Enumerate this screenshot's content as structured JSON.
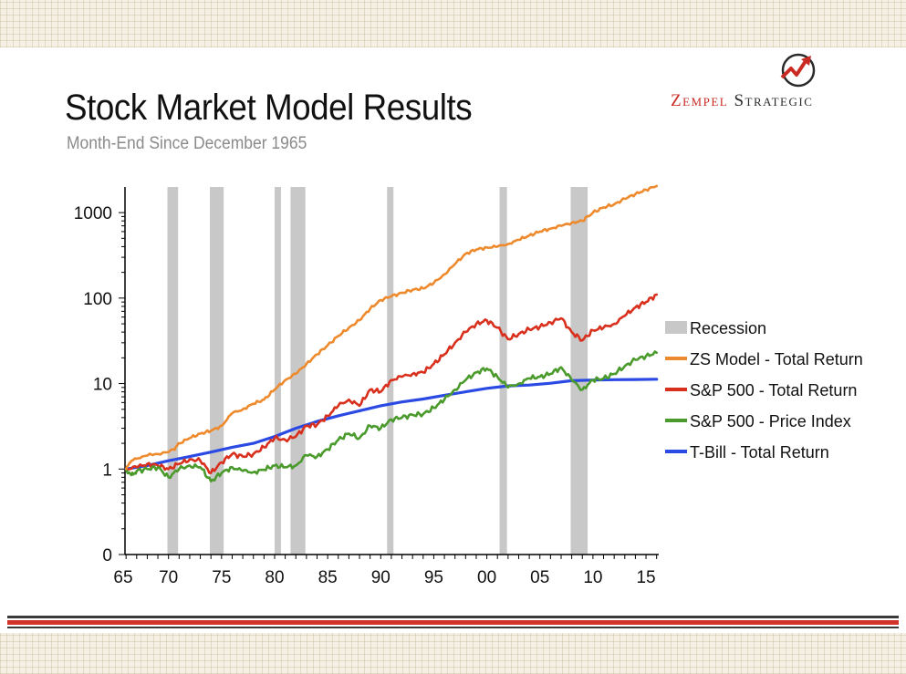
{
  "header": {
    "title": "Stock Market Model Results",
    "subtitle": "Month-End Since December 1965"
  },
  "brand": {
    "name_part1": "Zempel",
    "name_part2": "Strategic",
    "logo_icon": "zigzag-arrow-circle-icon",
    "colors": {
      "red": "#c92a22",
      "dark": "#2a2a2a"
    }
  },
  "chart_data": {
    "type": "line",
    "title": "Stock Market Model Results",
    "subtitle": "Month-End Since December 1965",
    "xlabel": "",
    "ylabel": "",
    "y_scale": "log",
    "xlim": [
      1965.9,
      2016.2
    ],
    "y_ticks": [
      {
        "value": 1000,
        "label": "1000"
      },
      {
        "value": 100,
        "label": "100"
      },
      {
        "value": 10,
        "label": "10"
      },
      {
        "value": 1,
        "label": "1"
      },
      {
        "value": 0.1,
        "label": "0"
      }
    ],
    "x_ticks": [
      {
        "value": 1965,
        "label": "65"
      },
      {
        "value": 1970,
        "label": "70"
      },
      {
        "value": 1975,
        "label": "75"
      },
      {
        "value": 1980,
        "label": "80"
      },
      {
        "value": 1985,
        "label": "85"
      },
      {
        "value": 1990,
        "label": "90"
      },
      {
        "value": 1995,
        "label": "95"
      },
      {
        "value": 2000,
        "label": "00"
      },
      {
        "value": 2005,
        "label": "05"
      },
      {
        "value": 2010,
        "label": "10"
      },
      {
        "value": 2015,
        "label": "15"
      }
    ],
    "recessions": [
      [
        1969.9,
        1970.9
      ],
      [
        1973.9,
        1975.2
      ],
      [
        1980.0,
        1980.6
      ],
      [
        1981.5,
        1982.9
      ],
      [
        1990.6,
        1991.2
      ],
      [
        2001.2,
        2001.9
      ],
      [
        2007.9,
        2009.5
      ]
    ],
    "legend": {
      "position": "right",
      "recession_label": "Recession",
      "recession_color": "#c8c8c8"
    },
    "series": [
      {
        "name": "ZS Model - Total Return",
        "color": "#ee8a2e",
        "points": [
          [
            1966,
            1
          ],
          [
            1966.5,
            1.25
          ],
          [
            1967.5,
            1.4
          ],
          [
            1969,
            1.5
          ],
          [
            1970.5,
            1.7
          ],
          [
            1971,
            2.0
          ],
          [
            1972,
            2.3
          ],
          [
            1973,
            2.6
          ],
          [
            1974,
            2.8
          ],
          [
            1975,
            3.2
          ],
          [
            1976,
            4.5
          ],
          [
            1977,
            5.0
          ],
          [
            1978,
            5.8
          ],
          [
            1979,
            6.5
          ],
          [
            1980,
            8.5
          ],
          [
            1981,
            11
          ],
          [
            1982,
            13
          ],
          [
            1983,
            17
          ],
          [
            1984,
            22
          ],
          [
            1985,
            28
          ],
          [
            1986,
            36
          ],
          [
            1987,
            45
          ],
          [
            1988,
            55
          ],
          [
            1989,
            75
          ],
          [
            1990,
            95
          ],
          [
            1991,
            105
          ],
          [
            1992,
            115
          ],
          [
            1993,
            125
          ],
          [
            1994,
            130
          ],
          [
            1995,
            150
          ],
          [
            1996,
            190
          ],
          [
            1997,
            250
          ],
          [
            1998,
            330
          ],
          [
            1999,
            370
          ],
          [
            2000,
            390
          ],
          [
            2001,
            400
          ],
          [
            2002,
            430
          ],
          [
            2003,
            480
          ],
          [
            2004,
            540
          ],
          [
            2005,
            600
          ],
          [
            2006,
            650
          ],
          [
            2007,
            700
          ],
          [
            2008,
            760
          ],
          [
            2009,
            800
          ],
          [
            2010,
            1000
          ],
          [
            2011,
            1150
          ],
          [
            2012,
            1250
          ],
          [
            2013,
            1450
          ],
          [
            2014,
            1650
          ],
          [
            2015,
            1850
          ],
          [
            2016,
            2050
          ]
        ]
      },
      {
        "name": "S&P 500 - Total Return",
        "color": "#d9301e",
        "points": [
          [
            1966,
            1
          ],
          [
            1967,
            1.05
          ],
          [
            1968,
            1.15
          ],
          [
            1969,
            1.1
          ],
          [
            1970,
            1.0
          ],
          [
            1971,
            1.15
          ],
          [
            1972,
            1.3
          ],
          [
            1973,
            1.25
          ],
          [
            1974,
            0.9
          ],
          [
            1975,
            1.2
          ],
          [
            1976,
            1.5
          ],
          [
            1977,
            1.4
          ],
          [
            1978,
            1.5
          ],
          [
            1979,
            1.8
          ],
          [
            1980,
            2.3
          ],
          [
            1981,
            2.2
          ],
          [
            1982,
            2.4
          ],
          [
            1983,
            3.2
          ],
          [
            1984,
            3.3
          ],
          [
            1985,
            4.2
          ],
          [
            1986,
            5.5
          ],
          [
            1987,
            6.5
          ],
          [
            1988,
            5.5
          ],
          [
            1989,
            8.5
          ],
          [
            1990,
            8.0
          ],
          [
            1991,
            11
          ],
          [
            1992,
            12
          ],
          [
            1993,
            13
          ],
          [
            1994,
            13.5
          ],
          [
            1995,
            17
          ],
          [
            1996,
            22
          ],
          [
            1997,
            30
          ],
          [
            1998,
            40
          ],
          [
            1999,
            50
          ],
          [
            2000,
            55
          ],
          [
            2001,
            45
          ],
          [
            2002,
            33
          ],
          [
            2003,
            38
          ],
          [
            2004,
            43
          ],
          [
            2005,
            46
          ],
          [
            2006,
            52
          ],
          [
            2007,
            58
          ],
          [
            2008,
            40
          ],
          [
            2009,
            32
          ],
          [
            2010,
            42
          ],
          [
            2011,
            45
          ],
          [
            2012,
            50
          ],
          [
            2013,
            62
          ],
          [
            2014,
            78
          ],
          [
            2015,
            90
          ],
          [
            2016,
            110
          ]
        ]
      },
      {
        "name": "S&P 500 - Price Index",
        "color": "#4a9a2c",
        "points": [
          [
            1966,
            1
          ],
          [
            1966.5,
            0.85
          ],
          [
            1967,
            0.95
          ],
          [
            1968,
            1.0
          ],
          [
            1969,
            1.05
          ],
          [
            1970,
            0.8
          ],
          [
            1971,
            1.0
          ],
          [
            1972,
            1.1
          ],
          [
            1973,
            1.05
          ],
          [
            1974,
            0.72
          ],
          [
            1975,
            0.9
          ],
          [
            1976,
            1.05
          ],
          [
            1977,
            0.95
          ],
          [
            1978,
            0.92
          ],
          [
            1979,
            0.98
          ],
          [
            1980,
            1.1
          ],
          [
            1981,
            1.05
          ],
          [
            1982,
            1.1
          ],
          [
            1983,
            1.45
          ],
          [
            1984,
            1.4
          ],
          [
            1985,
            1.7
          ],
          [
            1986,
            2.2
          ],
          [
            1987,
            2.6
          ],
          [
            1988,
            2.3
          ],
          [
            1989,
            3.2
          ],
          [
            1990,
            3.0
          ],
          [
            1991,
            3.8
          ],
          [
            1992,
            4.0
          ],
          [
            1993,
            4.3
          ],
          [
            1994,
            4.4
          ],
          [
            1995,
            5.2
          ],
          [
            1996,
            6.5
          ],
          [
            1997,
            8.5
          ],
          [
            1998,
            11
          ],
          [
            1999,
            13.5
          ],
          [
            2000,
            15
          ],
          [
            2001,
            12
          ],
          [
            2002,
            9
          ],
          [
            2003,
            10
          ],
          [
            2004,
            11.5
          ],
          [
            2005,
            12
          ],
          [
            2006,
            13
          ],
          [
            2007,
            15.5
          ],
          [
            2008,
            11
          ],
          [
            2009,
            8.5
          ],
          [
            2010,
            11
          ],
          [
            2011,
            11.5
          ],
          [
            2012,
            13
          ],
          [
            2013,
            16
          ],
          [
            2014,
            19
          ],
          [
            2015,
            21
          ],
          [
            2016,
            23
          ]
        ]
      },
      {
        "name": "T-Bill - Total Return",
        "color": "#2b49e3",
        "points": [
          [
            1966,
            1
          ],
          [
            1968,
            1.1
          ],
          [
            1970,
            1.25
          ],
          [
            1972,
            1.4
          ],
          [
            1974,
            1.58
          ],
          [
            1976,
            1.8
          ],
          [
            1978,
            2.0
          ],
          [
            1980,
            2.4
          ],
          [
            1982,
            3.0
          ],
          [
            1984,
            3.6
          ],
          [
            1986,
            4.2
          ],
          [
            1988,
            4.8
          ],
          [
            1990,
            5.5
          ],
          [
            1992,
            6.1
          ],
          [
            1994,
            6.6
          ],
          [
            1996,
            7.3
          ],
          [
            1998,
            8.0
          ],
          [
            2000,
            8.8
          ],
          [
            2002,
            9.4
          ],
          [
            2004,
            9.6
          ],
          [
            2006,
            10.1
          ],
          [
            2008,
            10.8
          ],
          [
            2010,
            11.0
          ],
          [
            2012,
            11.1
          ],
          [
            2014,
            11.15
          ],
          [
            2016,
            11.25
          ]
        ]
      }
    ]
  }
}
